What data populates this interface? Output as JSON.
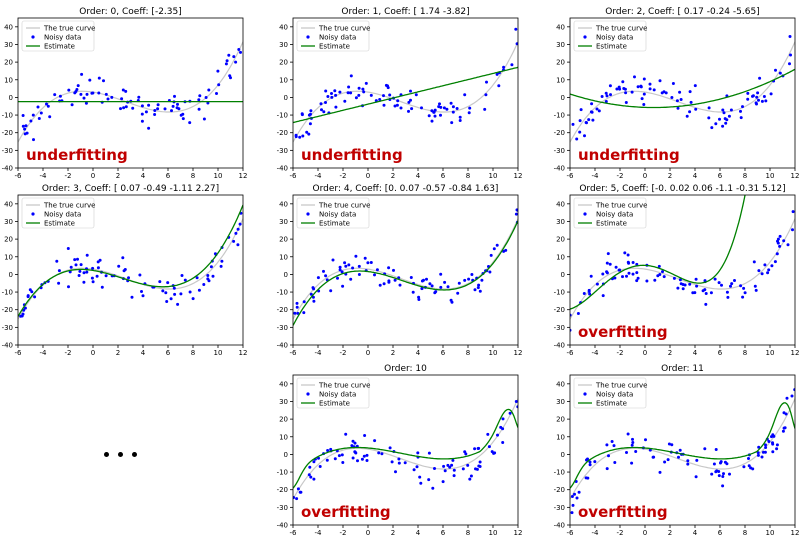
{
  "figure": {
    "colors": {
      "true_curve": "#c8c8c8",
      "noisy": "#0000ff",
      "estimate": "#008000",
      "annotation": "#c00000",
      "axes": "#000000"
    },
    "legend_labels": [
      "The true curve",
      "Noisy data",
      "Estimate"
    ],
    "ellipsis": "• • •"
  },
  "chart_data": [
    {
      "type": "scatter",
      "title": "Order: 0, Coeff: [-2.35]",
      "xlim": [
        -6,
        12
      ],
      "ylim": [
        -40,
        45
      ],
      "xticks": [
        -6,
        -4,
        -2,
        0,
        2,
        4,
        6,
        8,
        10,
        12
      ],
      "yticks": [
        -40,
        -30,
        -20,
        -10,
        0,
        10,
        20,
        30,
        40
      ],
      "estimate_coeffs": [
        -2.35
      ],
      "annotation": "underfitting",
      "legend": [
        "The true curve",
        "Noisy data",
        "Estimate"
      ],
      "seed": 11
    },
    {
      "type": "scatter",
      "title": "Order: 1, Coeff: [ 1.74 -3.82]",
      "xlim": [
        -6,
        12
      ],
      "ylim": [
        -40,
        45
      ],
      "xticks": [
        -6,
        -4,
        -2,
        0,
        2,
        4,
        6,
        8,
        10,
        12
      ],
      "yticks": [
        -40,
        -30,
        -20,
        -10,
        0,
        10,
        20,
        30,
        40
      ],
      "estimate_coeffs": [
        1.74,
        -3.82
      ],
      "annotation": "underfitting",
      "legend": [
        "The true curve",
        "Noisy data",
        "Estimate"
      ],
      "seed": 23
    },
    {
      "type": "scatter",
      "title": "Order: 2, Coeff: [ 0.17 -0.24 -5.65]",
      "xlim": [
        -6,
        12
      ],
      "ylim": [
        -40,
        45
      ],
      "xticks": [
        -6,
        -4,
        -2,
        0,
        2,
        4,
        6,
        8,
        10,
        12
      ],
      "yticks": [
        -40,
        -30,
        -20,
        -10,
        0,
        10,
        20,
        30,
        40
      ],
      "estimate_coeffs": [
        0.17,
        -0.24,
        -5.65
      ],
      "annotation": "underfitting",
      "legend": [
        "The true curve",
        "Noisy data",
        "Estimate"
      ],
      "seed": 37
    },
    {
      "type": "scatter",
      "title": "Order: 3, Coeff: [ 0.07 -0.49 -1.11  2.27]",
      "xlim": [
        -6,
        12
      ],
      "ylim": [
        -40,
        45
      ],
      "xticks": [
        -6,
        -4,
        -2,
        0,
        2,
        4,
        6,
        8,
        10,
        12
      ],
      "yticks": [
        -40,
        -30,
        -20,
        -10,
        0,
        10,
        20,
        30,
        40
      ],
      "estimate_coeffs": [
        0.07,
        -0.49,
        -1.11,
        2.27
      ],
      "annotation": "",
      "legend": [
        "The true curve",
        "Noisy data",
        "Estimate"
      ],
      "seed": 41
    },
    {
      "type": "scatter",
      "title": "Order: 4, Coeff: [0.    0.07 -0.57 -0.84  1.63]",
      "xlim": [
        -6,
        12
      ],
      "ylim": [
        -40,
        45
      ],
      "xticks": [
        -6,
        -4,
        -2,
        0,
        2,
        4,
        6,
        8,
        10,
        12
      ],
      "yticks": [
        -40,
        -30,
        -20,
        -10,
        0,
        10,
        20,
        30,
        40
      ],
      "estimate_coeffs": [
        0.0,
        0.07,
        -0.57,
        -0.84,
        1.63
      ],
      "annotation": "",
      "legend": [
        "The true curve",
        "Noisy data",
        "Estimate"
      ],
      "seed": 53
    },
    {
      "type": "scatter",
      "title": "Order: 5, Coeff: [-0.    0.02  0.06 -1.1  -0.31  5.12]",
      "xlim": [
        -6,
        12
      ],
      "ylim": [
        -40,
        45
      ],
      "xticks": [
        -6,
        -4,
        -2,
        0,
        2,
        4,
        6,
        8,
        10,
        12
      ],
      "yticks": [
        -40,
        -30,
        -20,
        -10,
        0,
        10,
        20,
        30,
        40
      ],
      "estimate_coeffs": [
        -0.0,
        0.02,
        0.06,
        -1.1,
        -0.31,
        5.12
      ],
      "annotation": "overfitting",
      "legend": [
        "The true curve",
        "Noisy data",
        "Estimate"
      ],
      "seed": 67
    },
    {
      "type": "scatter",
      "title": "Order: 10",
      "xlim": [
        -6,
        12
      ],
      "ylim": [
        -40,
        45
      ],
      "xticks": [
        -6,
        -4,
        -2,
        0,
        2,
        4,
        6,
        8,
        10,
        12
      ],
      "yticks": [
        -40,
        -30,
        -20,
        -10,
        0,
        10,
        20,
        30,
        40
      ],
      "estimate_coeffs": null,
      "annotation": "overfitting",
      "legend": [
        "The true curve",
        "Noisy data",
        "Estimate"
      ],
      "seed": 79
    },
    {
      "type": "scatter",
      "title": "Order: 11",
      "xlim": [
        -6,
        12
      ],
      "ylim": [
        -40,
        45
      ],
      "xticks": [
        -6,
        -4,
        -2,
        0,
        2,
        4,
        6,
        8,
        10,
        12
      ],
      "yticks": [
        -40,
        -30,
        -20,
        -10,
        0,
        10,
        20,
        30,
        40
      ],
      "estimate_coeffs": null,
      "annotation": "overfitting",
      "legend": [
        "The true curve",
        "Noisy data",
        "Estimate"
      ],
      "seed": 97
    }
  ]
}
